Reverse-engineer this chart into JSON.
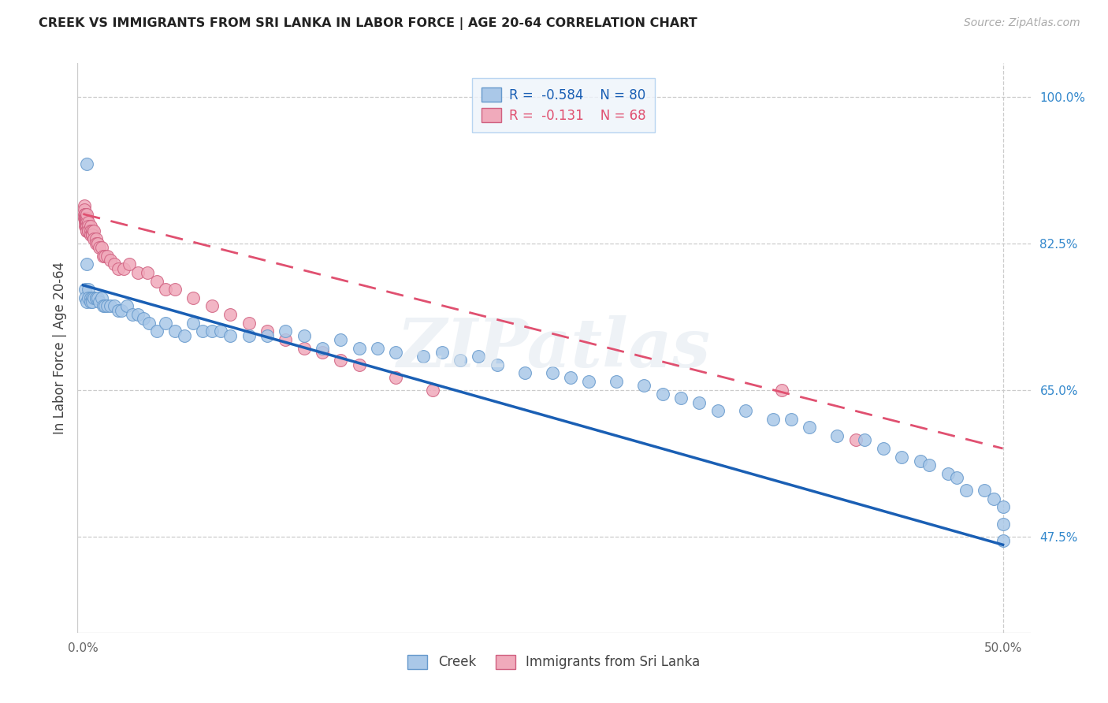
{
  "title": "CREEK VS IMMIGRANTS FROM SRI LANKA IN LABOR FORCE | AGE 20-64 CORRELATION CHART",
  "source": "Source: ZipAtlas.com",
  "ylabel": "In Labor Force | Age 20-64",
  "xlim_min": -0.003,
  "xlim_max": 0.515,
  "ylim_min": 0.36,
  "ylim_max": 1.04,
  "creek_color": "#aac8e8",
  "creek_edge_color": "#6699cc",
  "srilanka_color": "#f0aabb",
  "srilanka_edge_color": "#d06080",
  "creek_R": -0.584,
  "creek_N": 80,
  "srilanka_R": -0.131,
  "srilanka_N": 68,
  "blue_line_color": "#1a5fb4",
  "pink_line_color": "#e05070",
  "watermark": "ZIPatlas",
  "grid_color": "#cccccc",
  "ytick_color": "#3388cc",
  "xtick_color": "#666666",
  "yticks": [
    0.475,
    0.65,
    0.825,
    1.0
  ],
  "yticklabels": [
    "47.5%",
    "65.0%",
    "82.5%",
    "100.0%"
  ],
  "legend_bg": "#eef4fb",
  "legend_edge": "#aaccee",
  "creek_x": [
    0.001,
    0.001,
    0.002,
    0.002,
    0.002,
    0.003,
    0.003,
    0.004,
    0.004,
    0.005,
    0.005,
    0.006,
    0.007,
    0.007,
    0.008,
    0.009,
    0.01,
    0.011,
    0.012,
    0.013,
    0.015,
    0.017,
    0.019,
    0.021,
    0.024,
    0.027,
    0.03,
    0.033,
    0.036,
    0.04,
    0.045,
    0.05,
    0.055,
    0.06,
    0.065,
    0.07,
    0.075,
    0.08,
    0.09,
    0.1,
    0.11,
    0.12,
    0.13,
    0.14,
    0.15,
    0.16,
    0.17,
    0.185,
    0.195,
    0.205,
    0.215,
    0.225,
    0.24,
    0.255,
    0.265,
    0.275,
    0.29,
    0.305,
    0.315,
    0.325,
    0.335,
    0.345,
    0.36,
    0.375,
    0.385,
    0.395,
    0.41,
    0.425,
    0.435,
    0.445,
    0.455,
    0.46,
    0.47,
    0.475,
    0.48,
    0.49,
    0.495,
    0.5,
    0.5,
    0.5
  ],
  "creek_y": [
    0.77,
    0.76,
    0.92,
    0.8,
    0.755,
    0.77,
    0.76,
    0.76,
    0.755,
    0.76,
    0.755,
    0.76,
    0.76,
    0.76,
    0.76,
    0.755,
    0.76,
    0.75,
    0.75,
    0.75,
    0.75,
    0.75,
    0.745,
    0.745,
    0.75,
    0.74,
    0.74,
    0.735,
    0.73,
    0.72,
    0.73,
    0.72,
    0.715,
    0.73,
    0.72,
    0.72,
    0.72,
    0.715,
    0.715,
    0.715,
    0.72,
    0.715,
    0.7,
    0.71,
    0.7,
    0.7,
    0.695,
    0.69,
    0.695,
    0.685,
    0.69,
    0.68,
    0.67,
    0.67,
    0.665,
    0.66,
    0.66,
    0.655,
    0.645,
    0.64,
    0.635,
    0.625,
    0.625,
    0.615,
    0.615,
    0.605,
    0.595,
    0.59,
    0.58,
    0.57,
    0.565,
    0.56,
    0.55,
    0.545,
    0.53,
    0.53,
    0.52,
    0.51,
    0.49,
    0.47
  ],
  "srilanka_x": [
    0.0005,
    0.0006,
    0.0007,
    0.0008,
    0.0009,
    0.001,
    0.001,
    0.001,
    0.001,
    0.001,
    0.0012,
    0.0013,
    0.0014,
    0.0015,
    0.0015,
    0.0016,
    0.0017,
    0.0018,
    0.002,
    0.002,
    0.002,
    0.002,
    0.002,
    0.002,
    0.003,
    0.003,
    0.003,
    0.003,
    0.004,
    0.004,
    0.004,
    0.005,
    0.005,
    0.005,
    0.006,
    0.006,
    0.007,
    0.007,
    0.008,
    0.009,
    0.01,
    0.011,
    0.012,
    0.013,
    0.015,
    0.017,
    0.019,
    0.022,
    0.025,
    0.03,
    0.035,
    0.04,
    0.045,
    0.05,
    0.06,
    0.07,
    0.08,
    0.09,
    0.1,
    0.11,
    0.12,
    0.13,
    0.14,
    0.15,
    0.17,
    0.19,
    0.38,
    0.42
  ],
  "srilanka_y": [
    0.86,
    0.855,
    0.87,
    0.865,
    0.86,
    0.86,
    0.855,
    0.85,
    0.845,
    0.86,
    0.855,
    0.855,
    0.85,
    0.85,
    0.855,
    0.85,
    0.845,
    0.855,
    0.855,
    0.85,
    0.845,
    0.84,
    0.84,
    0.86,
    0.85,
    0.845,
    0.84,
    0.84,
    0.845,
    0.84,
    0.835,
    0.84,
    0.835,
    0.835,
    0.84,
    0.83,
    0.83,
    0.825,
    0.825,
    0.82,
    0.82,
    0.81,
    0.81,
    0.81,
    0.805,
    0.8,
    0.795,
    0.795,
    0.8,
    0.79,
    0.79,
    0.78,
    0.77,
    0.77,
    0.76,
    0.75,
    0.74,
    0.73,
    0.72,
    0.71,
    0.7,
    0.695,
    0.685,
    0.68,
    0.665,
    0.65,
    0.65,
    0.59
  ]
}
